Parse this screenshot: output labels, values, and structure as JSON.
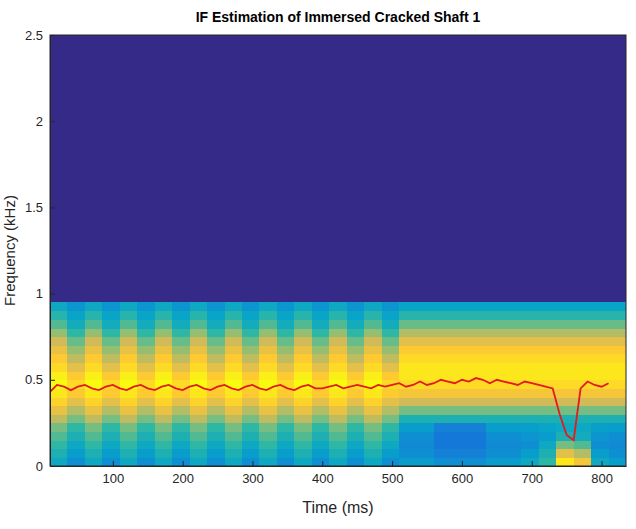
{
  "chart_data": {
    "type": "heatmap",
    "title": "IF Estimation of Immersed Cracked Shaft 1",
    "x_label": "Time (ms)",
    "y_label": "Frequency (kHz)",
    "xlim": [
      10,
      835
    ],
    "xticks": [
      100,
      200,
      300,
      400,
      500,
      600,
      700,
      800
    ],
    "ylim": [
      0,
      2.5
    ],
    "yticks": [
      0,
      0.5,
      1,
      1.5,
      2,
      2.5
    ],
    "grid": false,
    "color_range": [
      0,
      1
    ],
    "x_bins": [
      10,
      35,
      60,
      85,
      110,
      135,
      160,
      185,
      210,
      235,
      260,
      285,
      310,
      335,
      360,
      385,
      410,
      435,
      460,
      485,
      510,
      535,
      560,
      585,
      610,
      635,
      660,
      685,
      710,
      735,
      760,
      785,
      810,
      835
    ],
    "y_bins": [
      0,
      0.05,
      0.1,
      0.15,
      0.2,
      0.25,
      0.3,
      0.35,
      0.4,
      0.45,
      0.5,
      0.55,
      0.6,
      0.65,
      0.7,
      0.75,
      0.8,
      0.85,
      0.9,
      0.95
    ],
    "cells": [
      [
        0.4,
        0.3,
        0.4,
        0.3,
        0.4,
        0.3,
        0.4,
        0.3,
        0.4,
        0.3,
        0.4,
        0.3,
        0.4,
        0.3,
        0.4,
        0.3,
        0.4,
        0.3,
        0.4,
        0.3,
        0.35,
        0.35,
        0.3,
        0.3,
        0.3,
        0.35,
        0.35,
        0.4,
        0.5,
        0.95,
        0.85,
        0.4,
        0.35
      ],
      [
        0.45,
        0.35,
        0.45,
        0.35,
        0.45,
        0.35,
        0.45,
        0.35,
        0.45,
        0.35,
        0.45,
        0.35,
        0.45,
        0.35,
        0.45,
        0.35,
        0.45,
        0.35,
        0.45,
        0.35,
        0.3,
        0.3,
        0.25,
        0.25,
        0.25,
        0.3,
        0.3,
        0.35,
        0.45,
        0.8,
        0.7,
        0.35,
        0.3
      ],
      [
        0.5,
        0.4,
        0.5,
        0.4,
        0.5,
        0.4,
        0.5,
        0.4,
        0.5,
        0.4,
        0.5,
        0.4,
        0.5,
        0.4,
        0.5,
        0.4,
        0.5,
        0.4,
        0.5,
        0.4,
        0.28,
        0.28,
        0.22,
        0.22,
        0.22,
        0.28,
        0.28,
        0.3,
        0.4,
        0.6,
        0.55,
        0.3,
        0.28
      ],
      [
        0.55,
        0.45,
        0.55,
        0.45,
        0.55,
        0.45,
        0.55,
        0.45,
        0.55,
        0.45,
        0.55,
        0.45,
        0.55,
        0.45,
        0.55,
        0.45,
        0.55,
        0.45,
        0.55,
        0.45,
        0.3,
        0.3,
        0.22,
        0.22,
        0.22,
        0.3,
        0.3,
        0.32,
        0.35,
        0.45,
        0.42,
        0.32,
        0.3
      ],
      [
        0.6,
        0.5,
        0.6,
        0.5,
        0.6,
        0.5,
        0.6,
        0.5,
        0.6,
        0.5,
        0.6,
        0.5,
        0.6,
        0.5,
        0.6,
        0.5,
        0.6,
        0.5,
        0.6,
        0.5,
        0.35,
        0.35,
        0.25,
        0.25,
        0.25,
        0.35,
        0.35,
        0.36,
        0.38,
        0.4,
        0.4,
        0.36,
        0.35
      ],
      [
        0.72,
        0.6,
        0.72,
        0.6,
        0.72,
        0.6,
        0.72,
        0.6,
        0.72,
        0.6,
        0.72,
        0.6,
        0.72,
        0.6,
        0.72,
        0.6,
        0.72,
        0.6,
        0.72,
        0.6,
        0.45,
        0.45,
        0.45,
        0.45,
        0.45,
        0.45,
        0.45,
        0.45,
        0.45,
        0.45,
        0.45,
        0.45,
        0.45
      ],
      [
        0.82,
        0.7,
        0.82,
        0.7,
        0.82,
        0.7,
        0.82,
        0.7,
        0.82,
        0.7,
        0.82,
        0.7,
        0.82,
        0.7,
        0.82,
        0.7,
        0.82,
        0.7,
        0.82,
        0.7,
        0.6,
        0.6,
        0.6,
        0.6,
        0.6,
        0.6,
        0.6,
        0.6,
        0.6,
        0.6,
        0.6,
        0.6,
        0.6
      ],
      [
        0.9,
        0.8,
        0.9,
        0.8,
        0.9,
        0.8,
        0.9,
        0.8,
        0.9,
        0.8,
        0.9,
        0.8,
        0.9,
        0.8,
        0.9,
        0.8,
        0.9,
        0.8,
        0.9,
        0.8,
        0.75,
        0.75,
        0.75,
        0.75,
        0.75,
        0.75,
        0.75,
        0.75,
        0.75,
        0.75,
        0.75,
        0.75,
        0.75
      ],
      [
        0.95,
        0.88,
        0.95,
        0.88,
        0.95,
        0.88,
        0.95,
        0.88,
        0.95,
        0.88,
        0.95,
        0.88,
        0.95,
        0.88,
        0.95,
        0.88,
        0.95,
        0.88,
        0.95,
        0.88,
        0.85,
        0.85,
        0.85,
        0.85,
        0.85,
        0.85,
        0.85,
        0.85,
        0.85,
        0.85,
        0.85,
        0.85,
        0.85
      ],
      [
        1,
        0.92,
        1,
        0.92,
        1,
        0.92,
        1,
        0.92,
        1,
        0.92,
        1,
        0.92,
        1,
        0.92,
        1,
        0.92,
        1,
        0.92,
        1,
        0.92,
        0.92,
        0.92,
        0.92,
        0.92,
        0.92,
        0.92,
        0.92,
        0.92,
        0.92,
        0.92,
        0.92,
        0.92,
        0.92
      ],
      [
        0.97,
        0.88,
        0.97,
        0.88,
        0.97,
        0.88,
        0.97,
        0.88,
        0.97,
        0.88,
        0.97,
        0.88,
        0.97,
        0.88,
        0.97,
        0.88,
        0.97,
        0.88,
        0.97,
        0.88,
        0.95,
        0.95,
        0.95,
        0.95,
        0.95,
        0.95,
        0.95,
        0.95,
        0.95,
        0.95,
        0.95,
        0.95,
        0.95
      ],
      [
        0.92,
        0.8,
        0.92,
        0.8,
        0.92,
        0.8,
        0.92,
        0.8,
        0.92,
        0.8,
        0.92,
        0.8,
        0.92,
        0.8,
        0.92,
        0.8,
        0.92,
        0.8,
        0.92,
        0.8,
        0.95,
        0.95,
        0.95,
        0.95,
        0.95,
        0.95,
        0.95,
        0.95,
        0.95,
        0.95,
        0.95,
        0.95,
        0.95
      ],
      [
        0.88,
        0.72,
        0.88,
        0.72,
        0.88,
        0.72,
        0.88,
        0.72,
        0.88,
        0.72,
        0.88,
        0.72,
        0.88,
        0.72,
        0.88,
        0.72,
        0.88,
        0.72,
        0.88,
        0.72,
        0.92,
        0.92,
        0.92,
        0.92,
        0.92,
        0.92,
        0.92,
        0.92,
        0.92,
        0.92,
        0.92,
        0.92,
        0.92
      ],
      [
        0.82,
        0.65,
        0.82,
        0.65,
        0.82,
        0.65,
        0.82,
        0.65,
        0.82,
        0.65,
        0.82,
        0.65,
        0.82,
        0.65,
        0.82,
        0.65,
        0.82,
        0.65,
        0.82,
        0.65,
        0.88,
        0.88,
        0.88,
        0.88,
        0.88,
        0.88,
        0.88,
        0.88,
        0.88,
        0.88,
        0.88,
        0.88,
        0.88
      ],
      [
        0.75,
        0.58,
        0.75,
        0.58,
        0.75,
        0.58,
        0.75,
        0.58,
        0.75,
        0.58,
        0.75,
        0.58,
        0.75,
        0.58,
        0.75,
        0.58,
        0.75,
        0.58,
        0.75,
        0.58,
        0.8,
        0.8,
        0.8,
        0.8,
        0.8,
        0.8,
        0.8,
        0.8,
        0.8,
        0.8,
        0.8,
        0.8,
        0.8
      ],
      [
        0.65,
        0.5,
        0.65,
        0.5,
        0.65,
        0.5,
        0.65,
        0.5,
        0.65,
        0.5,
        0.65,
        0.5,
        0.65,
        0.5,
        0.65,
        0.5,
        0.65,
        0.5,
        0.65,
        0.5,
        0.7,
        0.7,
        0.7,
        0.7,
        0.7,
        0.7,
        0.7,
        0.7,
        0.7,
        0.7,
        0.7,
        0.7,
        0.7
      ],
      [
        0.55,
        0.42,
        0.55,
        0.42,
        0.55,
        0.42,
        0.55,
        0.42,
        0.55,
        0.42,
        0.55,
        0.42,
        0.55,
        0.42,
        0.55,
        0.42,
        0.55,
        0.42,
        0.55,
        0.42,
        0.58,
        0.58,
        0.58,
        0.58,
        0.58,
        0.58,
        0.58,
        0.58,
        0.58,
        0.58,
        0.58,
        0.58,
        0.58
      ],
      [
        0.48,
        0.38,
        0.48,
        0.38,
        0.48,
        0.38,
        0.48,
        0.38,
        0.48,
        0.38,
        0.48,
        0.38,
        0.48,
        0.38,
        0.48,
        0.38,
        0.48,
        0.38,
        0.48,
        0.38,
        0.48,
        0.48,
        0.48,
        0.48,
        0.48,
        0.48,
        0.48,
        0.48,
        0.48,
        0.48,
        0.48,
        0.48,
        0.48
      ],
      [
        0.4,
        0.32,
        0.4,
        0.32,
        0.4,
        0.32,
        0.4,
        0.32,
        0.4,
        0.32,
        0.4,
        0.32,
        0.4,
        0.32,
        0.4,
        0.32,
        0.4,
        0.32,
        0.4,
        0.32,
        0.38,
        0.38,
        0.38,
        0.38,
        0.38,
        0.38,
        0.38,
        0.38,
        0.38,
        0.38,
        0.38,
        0.38,
        0.38
      ]
    ],
    "series": [
      {
        "type": "line",
        "color": "#e31a1c",
        "x": [
          10,
          20,
          30,
          40,
          50,
          60,
          70,
          80,
          90,
          100,
          110,
          120,
          130,
          140,
          150,
          160,
          170,
          180,
          190,
          200,
          210,
          220,
          230,
          240,
          250,
          260,
          270,
          280,
          290,
          300,
          310,
          320,
          330,
          340,
          350,
          360,
          370,
          380,
          390,
          400,
          410,
          420,
          430,
          440,
          450,
          460,
          470,
          480,
          490,
          500,
          510,
          520,
          530,
          540,
          550,
          560,
          570,
          580,
          590,
          600,
          610,
          620,
          630,
          640,
          650,
          660,
          670,
          680,
          690,
          700,
          710,
          720,
          730,
          740,
          750,
          760,
          770,
          780,
          790,
          800,
          810
        ],
        "values": [
          0.43,
          0.47,
          0.46,
          0.44,
          0.46,
          0.47,
          0.45,
          0.44,
          0.46,
          0.47,
          0.45,
          0.44,
          0.46,
          0.47,
          0.45,
          0.44,
          0.46,
          0.47,
          0.45,
          0.44,
          0.46,
          0.47,
          0.45,
          0.44,
          0.46,
          0.47,
          0.45,
          0.44,
          0.46,
          0.47,
          0.45,
          0.44,
          0.46,
          0.47,
          0.45,
          0.44,
          0.46,
          0.47,
          0.45,
          0.45,
          0.46,
          0.47,
          0.45,
          0.46,
          0.47,
          0.46,
          0.45,
          0.47,
          0.46,
          0.47,
          0.48,
          0.46,
          0.47,
          0.49,
          0.47,
          0.48,
          0.5,
          0.49,
          0.48,
          0.5,
          0.49,
          0.51,
          0.5,
          0.48,
          0.5,
          0.49,
          0.48,
          0.47,
          0.49,
          0.48,
          0.47,
          0.46,
          0.45,
          0.3,
          0.18,
          0.15,
          0.45,
          0.49,
          0.47,
          0.46,
          0.48
        ]
      }
    ]
  }
}
